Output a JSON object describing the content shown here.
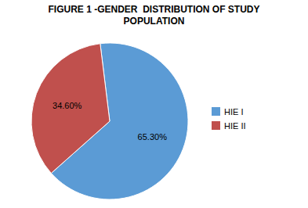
{
  "chart_data": {
    "type": "pie",
    "title": "FIGURE 1 -GENDER  DISTRIBUTION OF STUDY\nPOPULATION",
    "categories": [
      "HIE I",
      "HIE II"
    ],
    "values": [
      65.3,
      34.6
    ],
    "value_labels": [
      "65.30%",
      "34.60%"
    ],
    "colors": [
      "#5B9BD5",
      "#C0504D"
    ],
    "data_labels": true,
    "legend": "right"
  }
}
